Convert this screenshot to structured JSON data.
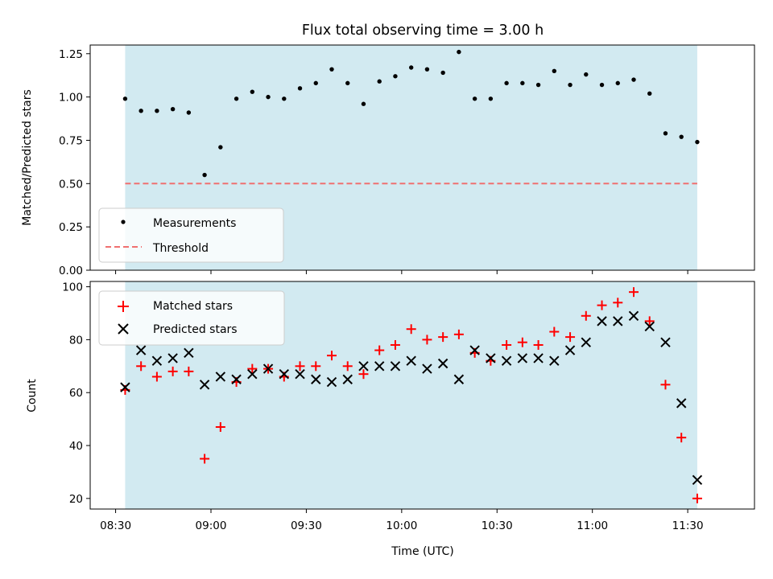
{
  "chart_data": [
    {
      "type": "scatter",
      "title": "Flux total observing time = 3.00 h",
      "xlabel": "",
      "ylabel": "Matched/Predicted stars",
      "ylim": [
        0,
        1.3
      ],
      "xlim": [
        "08:22",
        "11:51"
      ],
      "yticks": [
        "0.00",
        "0.25",
        "0.50",
        "0.75",
        "1.00",
        "1.25"
      ],
      "x_ticks_shown": false,
      "observing_window": [
        "08:33",
        "11:33"
      ],
      "legend_position": "lower-left",
      "series": [
        {
          "name": "Measurements",
          "marker": "dot",
          "color": "#000000",
          "x": [
            "08:33",
            "08:38",
            "08:43",
            "08:48",
            "08:53",
            "08:58",
            "09:03",
            "09:08",
            "09:13",
            "09:18",
            "09:23",
            "09:28",
            "09:33",
            "09:38",
            "09:43",
            "09:48",
            "09:53",
            "09:58",
            "10:03",
            "10:08",
            "10:13",
            "10:18",
            "10:23",
            "10:28",
            "10:33",
            "10:38",
            "10:43",
            "10:48",
            "10:53",
            "10:58",
            "11:03",
            "11:08",
            "11:13",
            "11:18",
            "11:23",
            "11:28",
            "11:33"
          ],
          "values": [
            0.99,
            0.92,
            0.92,
            0.93,
            0.91,
            0.55,
            0.71,
            0.99,
            1.03,
            1.0,
            0.99,
            1.05,
            1.08,
            1.16,
            1.08,
            0.96,
            1.09,
            1.12,
            1.17,
            1.16,
            1.14,
            1.26,
            0.99,
            0.99,
            1.08,
            1.08,
            1.07,
            1.15,
            1.07,
            1.13,
            1.07,
            1.08,
            1.1,
            1.02,
            0.79,
            0.77,
            0.74
          ]
        },
        {
          "name": "Threshold",
          "marker": "dashed-line",
          "color": "#f07070",
          "value": 0.5
        }
      ]
    },
    {
      "type": "scatter",
      "title": "",
      "xlabel": "Time (UTC)",
      "ylabel": "Count",
      "ylim": [
        16,
        102
      ],
      "xlim": [
        "08:22",
        "11:51"
      ],
      "yticks": [
        "20",
        "40",
        "60",
        "80",
        "100"
      ],
      "xticks": [
        "08:30",
        "09:00",
        "09:30",
        "10:00",
        "10:30",
        "11:00",
        "11:30"
      ],
      "observing_window": [
        "08:33",
        "11:33"
      ],
      "legend_position": "upper-left",
      "series": [
        {
          "name": "Matched stars",
          "marker": "plus",
          "color": "#ff0000",
          "x": [
            "08:33",
            "08:38",
            "08:43",
            "08:48",
            "08:53",
            "08:58",
            "09:03",
            "09:08",
            "09:13",
            "09:18",
            "09:23",
            "09:28",
            "09:33",
            "09:38",
            "09:43",
            "09:48",
            "09:53",
            "09:58",
            "10:03",
            "10:08",
            "10:13",
            "10:18",
            "10:23",
            "10:28",
            "10:33",
            "10:38",
            "10:43",
            "10:48",
            "10:53",
            "10:58",
            "11:03",
            "11:08",
            "11:13",
            "11:18",
            "11:23",
            "11:28",
            "11:33"
          ],
          "values": [
            61,
            70,
            66,
            68,
            68,
            35,
            47,
            64,
            69,
            69,
            66,
            70,
            70,
            74,
            70,
            67,
            76,
            78,
            84,
            80,
            81,
            82,
            75,
            72,
            78,
            79,
            78,
            83,
            81,
            89,
            93,
            94,
            98,
            87,
            63,
            43,
            20
          ]
        },
        {
          "name": "Predicted stars",
          "marker": "x",
          "color": "#000000",
          "x": [
            "08:33",
            "08:38",
            "08:43",
            "08:48",
            "08:53",
            "08:58",
            "09:03",
            "09:08",
            "09:13",
            "09:18",
            "09:23",
            "09:28",
            "09:33",
            "09:38",
            "09:43",
            "09:48",
            "09:53",
            "09:58",
            "10:03",
            "10:08",
            "10:13",
            "10:18",
            "10:23",
            "10:28",
            "10:33",
            "10:38",
            "10:43",
            "10:48",
            "10:53",
            "10:58",
            "11:03",
            "11:08",
            "11:13",
            "11:18",
            "11:23",
            "11:28",
            "11:33"
          ],
          "values": [
            62,
            76,
            72,
            73,
            75,
            63,
            66,
            65,
            67,
            69,
            67,
            67,
            65,
            64,
            65,
            70,
            70,
            70,
            72,
            69,
            71,
            65,
            76,
            73,
            72,
            73,
            73,
            72,
            76,
            79,
            87,
            87,
            89,
            85,
            79,
            56,
            27
          ]
        }
      ]
    }
  ],
  "colors": {
    "shading": "#add8e6",
    "axis": "#000000"
  }
}
